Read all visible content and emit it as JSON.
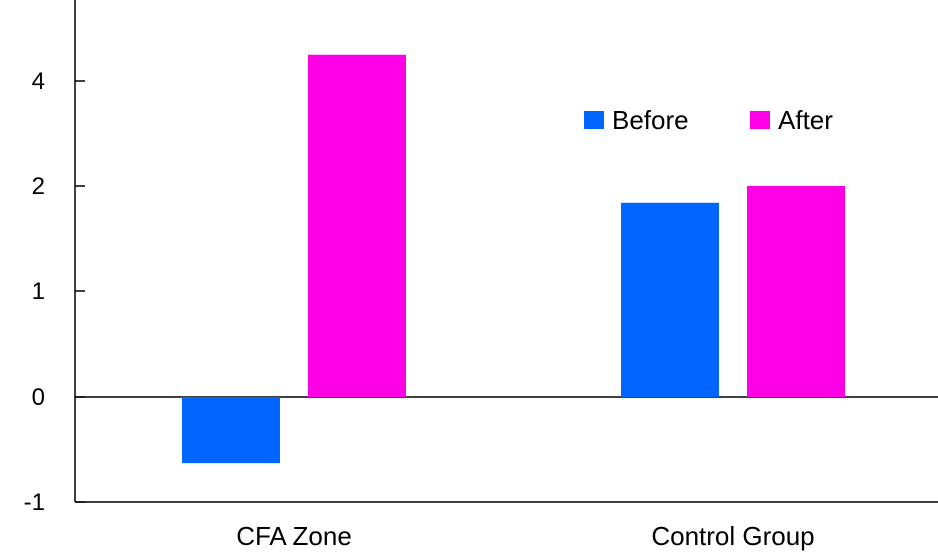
{
  "chart_data": {
    "type": "bar",
    "categories": [
      "CFA Zone",
      "Control Group"
    ],
    "series": [
      {
        "name": "Before",
        "values": [
          -0.63,
          1.84
        ],
        "color": "#0066FF"
      },
      {
        "name": "After",
        "values": [
          4.5,
          2.0
        ],
        "color": "#FF00E6"
      }
    ],
    "y_ticks": [
      -1,
      0,
      1,
      2,
      4
    ],
    "y_tick_labels": [
      "-1",
      "0",
      "1",
      "2",
      "4"
    ],
    "ylim": [
      -1,
      4.6
    ],
    "grid": false,
    "legend_position": "top-right"
  }
}
